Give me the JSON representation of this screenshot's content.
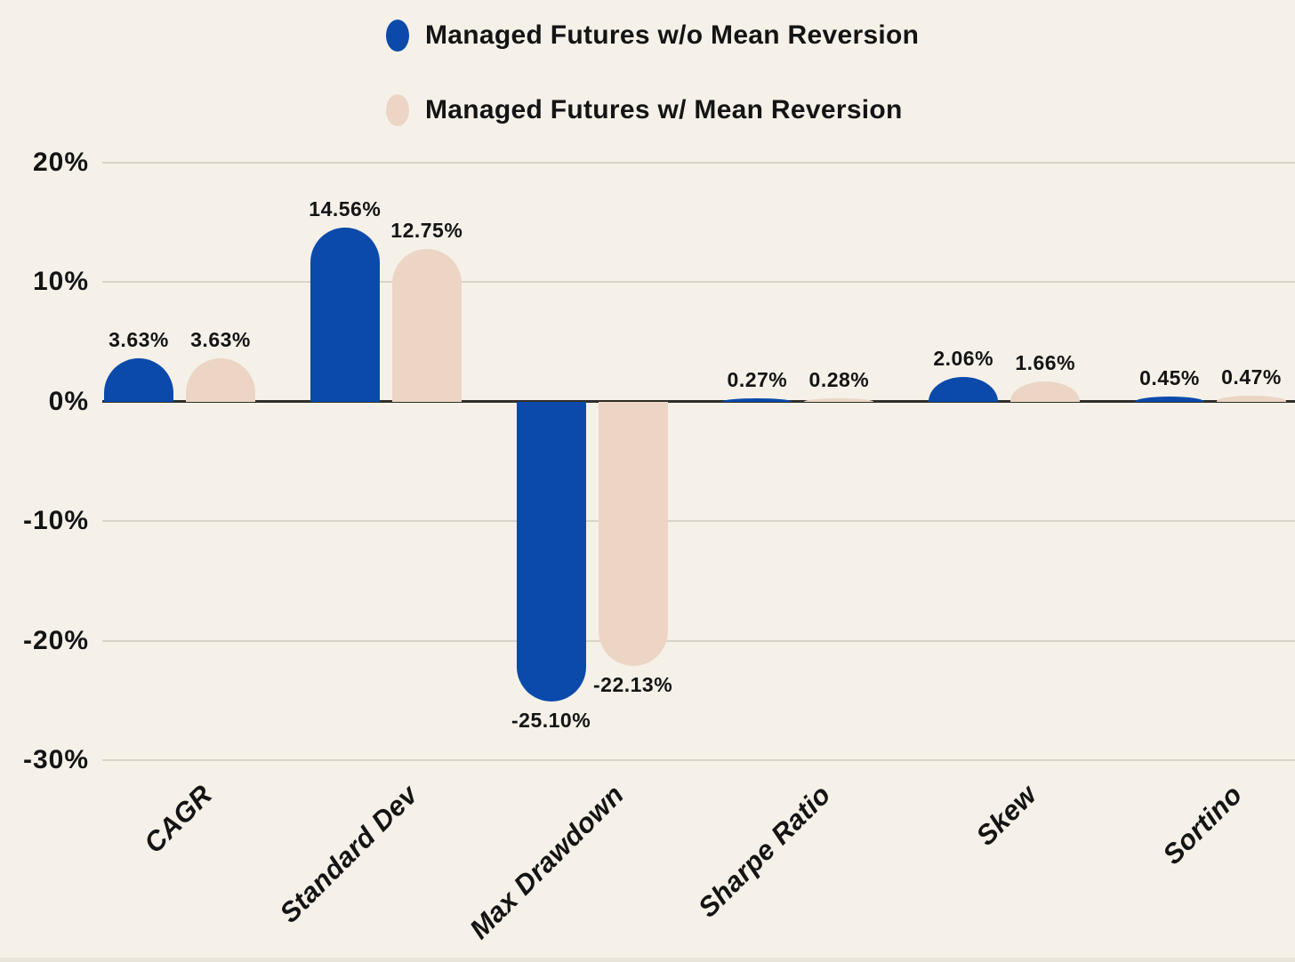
{
  "chart_data": {
    "type": "bar",
    "title": "",
    "legend_position": "top",
    "grid": true,
    "categories": [
      "CAGR",
      "Standard Dev",
      "Max Drawdown",
      "Sharpe Ratio",
      "Skew",
      "Sortino"
    ],
    "series": [
      {
        "name": "Managed Futures w/o Mean Reversion",
        "color": "#0b4aab",
        "values": [
          3.63,
          14.56,
          -25.1,
          0.27,
          2.06,
          0.45
        ],
        "labels": [
          "3.63%",
          "14.56%",
          "-25.10%",
          "0.27%",
          "2.06%",
          "0.45%"
        ]
      },
      {
        "name": "Managed Futures w/ Mean Reversion",
        "color": "#ecd5c5",
        "values": [
          3.63,
          12.75,
          -22.13,
          0.28,
          1.66,
          0.47
        ],
        "labels": [
          "3.63%",
          "12.75%",
          "-22.13%",
          "0.28%",
          "1.66%",
          "0.47%"
        ]
      }
    ],
    "y_axis": {
      "unit": "%",
      "min": -30,
      "max": 20,
      "ticks": [
        {
          "value": 20,
          "label": "20%"
        },
        {
          "value": 10,
          "label": "10%"
        },
        {
          "value": 0,
          "label": "0%"
        },
        {
          "value": -10,
          "label": "-10%"
        },
        {
          "value": -20,
          "label": "-20%"
        },
        {
          "value": -30,
          "label": "-30%"
        }
      ]
    },
    "colors": {
      "background": "#f5f1e9",
      "gridline": "#d8d4c9",
      "zero_line": "#302e29",
      "text": "#141414"
    }
  }
}
